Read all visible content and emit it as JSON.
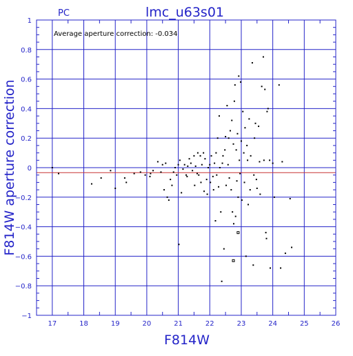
{
  "chart_data": {
    "type": "scatter",
    "header_left": "PC",
    "title": "lmc_u63s01",
    "annotation": "Average aperture correction: -0.034",
    "xlabel": "F814W",
    "ylabel": "F814W aperture correction",
    "xlim": [
      16.5,
      26
    ],
    "ylim": [
      -1,
      1
    ],
    "x_ticks": [
      "17",
      "18",
      "19",
      "20",
      "21",
      "22",
      "23",
      "24",
      "25",
      "26"
    ],
    "y_ticks": [
      "1",
      "0.8",
      "0.6",
      "0.4",
      "0.2",
      "0",
      "−0.2",
      "−0.4",
      "−0.6",
      "−0.8",
      "−1"
    ],
    "reference_lines": [
      0.0,
      -0.034
    ],
    "colors": {
      "frame": "#2323c8",
      "axis_text": "#2323c8",
      "points": "#000000",
      "average_line": "#c83232"
    },
    "grid": true,
    "points": [
      [
        17.0,
        0.0
      ],
      [
        17.2,
        -0.04
      ],
      [
        18.25,
        -0.11
      ],
      [
        18.55,
        -0.07
      ],
      [
        18.85,
        -0.02
      ],
      [
        19.0,
        -0.14
      ],
      [
        19.3,
        -0.07
      ],
      [
        19.35,
        -0.1
      ],
      [
        19.6,
        -0.04
      ],
      [
        19.8,
        -0.03
      ],
      [
        19.95,
        -0.05
      ],
      [
        20.1,
        -0.06
      ],
      [
        20.12,
        -0.04
      ],
      [
        20.2,
        -0.02
      ],
      [
        20.35,
        0.04
      ],
      [
        20.45,
        -0.03
      ],
      [
        20.5,
        0.02
      ],
      [
        20.55,
        -0.15
      ],
      [
        20.6,
        0.03
      ],
      [
        20.65,
        -0.2
      ],
      [
        20.7,
        -0.22
      ],
      [
        20.75,
        -0.08
      ],
      [
        20.8,
        -0.12
      ],
      [
        20.85,
        -0.03
      ],
      [
        20.9,
        0.0
      ],
      [
        20.95,
        -0.05
      ],
      [
        21.0,
        0.02
      ],
      [
        21.02,
        -0.52
      ],
      [
        21.05,
        0.05
      ],
      [
        21.1,
        -0.17
      ],
      [
        21.15,
        -0.01
      ],
      [
        21.2,
        0.02
      ],
      [
        21.25,
        -0.05
      ],
      [
        21.28,
        -0.06
      ],
      [
        21.3,
        0.01
      ],
      [
        21.35,
        0.06
      ],
      [
        21.4,
        0.03
      ],
      [
        21.45,
        -0.02
      ],
      [
        21.5,
        0.08
      ],
      [
        21.52,
        -0.12
      ],
      [
        21.55,
        0.01
      ],
      [
        21.6,
        -0.04
      ],
      [
        21.62,
        0.1
      ],
      [
        21.65,
        -0.05
      ],
      [
        21.7,
        0.08
      ],
      [
        21.72,
        -0.1
      ],
      [
        21.75,
        0.02
      ],
      [
        21.8,
        0.1
      ],
      [
        21.82,
        -0.16
      ],
      [
        21.85,
        0.06
      ],
      [
        21.9,
        -0.08
      ],
      [
        21.92,
        -0.18
      ],
      [
        21.95,
        0.0
      ],
      [
        22.0,
        0.02
      ],
      [
        22.02,
        -0.1
      ],
      [
        22.05,
        0.08
      ],
      [
        22.1,
        -0.06
      ],
      [
        22.12,
        -0.15
      ],
      [
        22.15,
        0.03
      ],
      [
        22.18,
        -0.36
      ],
      [
        22.2,
        0.1
      ],
      [
        22.22,
        -0.05
      ],
      [
        22.25,
        0.2
      ],
      [
        22.28,
        -0.13
      ],
      [
        22.3,
        0.35
      ],
      [
        22.32,
        0.0
      ],
      [
        22.35,
        -0.3
      ],
      [
        22.38,
        -0.77
      ],
      [
        22.4,
        0.03
      ],
      [
        22.42,
        0.08
      ],
      [
        22.45,
        -0.55
      ],
      [
        22.48,
        0.12
      ],
      [
        22.5,
        0.21
      ],
      [
        22.52,
        -0.12
      ],
      [
        22.55,
        0.42
      ],
      [
        22.58,
        0.02
      ],
      [
        22.6,
        0.2
      ],
      [
        22.62,
        -0.07
      ],
      [
        22.65,
        0.25
      ],
      [
        22.68,
        -0.15
      ],
      [
        22.7,
        0.32
      ],
      [
        22.72,
        -0.3
      ],
      [
        22.75,
        0.16
      ],
      [
        22.76,
        -0.38
      ],
      [
        22.78,
        0.45
      ],
      [
        22.8,
        0.56
      ],
      [
        22.82,
        -0.33
      ],
      [
        22.84,
        0.12
      ],
      [
        22.86,
        -0.09
      ],
      [
        22.88,
        0.23
      ],
      [
        22.9,
        -0.2
      ],
      [
        22.92,
        0.62
      ],
      [
        22.94,
        0.05
      ],
      [
        22.96,
        -0.04
      ],
      [
        22.98,
        0.58
      ],
      [
        23.0,
        0.18
      ],
      [
        23.02,
        -0.22
      ],
      [
        23.05,
        0.38
      ],
      [
        23.08,
        0.1
      ],
      [
        23.1,
        -0.1
      ],
      [
        23.12,
        0.27
      ],
      [
        23.15,
        -0.6
      ],
      [
        23.18,
        0.15
      ],
      [
        23.2,
        0.05
      ],
      [
        23.22,
        -0.25
      ],
      [
        23.25,
        0.33
      ],
      [
        23.28,
        -0.15
      ],
      [
        23.3,
        0.08
      ],
      [
        23.35,
        0.71
      ],
      [
        23.38,
        -0.66
      ],
      [
        23.4,
        -0.05
      ],
      [
        23.42,
        0.2
      ],
      [
        23.45,
        0.3
      ],
      [
        23.48,
        -0.08
      ],
      [
        23.5,
        -0.14
      ],
      [
        23.55,
        0.28
      ],
      [
        23.58,
        0.04
      ],
      [
        23.6,
        -0.18
      ],
      [
        23.65,
        0.55
      ],
      [
        23.7,
        0.75
      ],
      [
        23.72,
        0.05
      ],
      [
        23.75,
        0.53
      ],
      [
        23.78,
        -0.44
      ],
      [
        23.8,
        -0.48
      ],
      [
        23.82,
        0.38
      ],
      [
        23.85,
        0.4
      ],
      [
        23.9,
        0.05
      ],
      [
        23.92,
        -0.68
      ],
      [
        24.0,
        0.03
      ],
      [
        24.05,
        -0.2
      ],
      [
        24.2,
        0.56
      ],
      [
        24.25,
        -0.68
      ],
      [
        24.3,
        0.04
      ],
      [
        24.4,
        -0.58
      ],
      [
        24.55,
        -0.21
      ],
      [
        24.6,
        -0.54
      ]
    ],
    "open_points": [
      [
        22.9,
        -0.44
      ],
      [
        22.75,
        -0.63
      ]
    ]
  }
}
